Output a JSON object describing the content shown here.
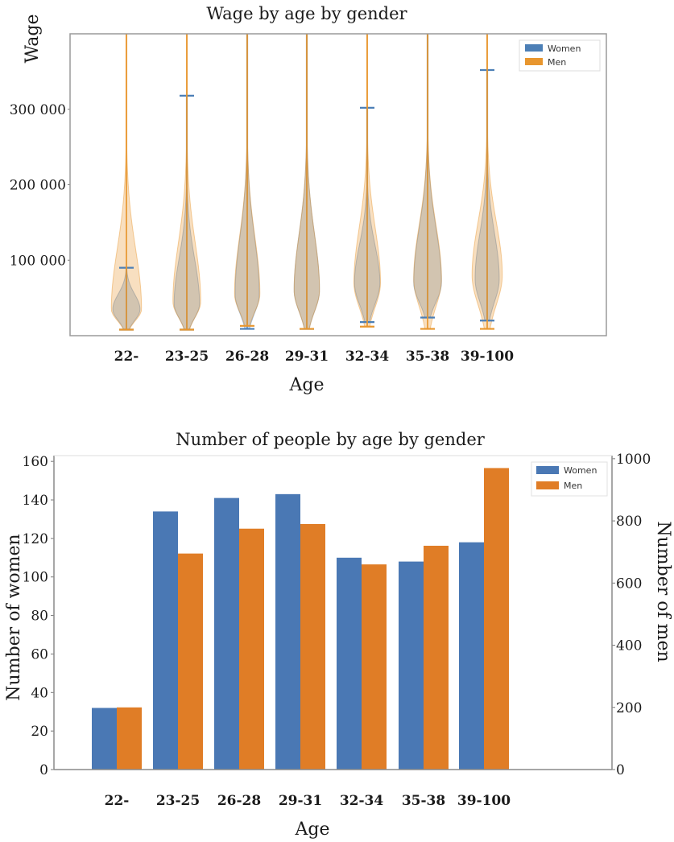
{
  "chart_data": [
    {
      "type": "violin",
      "title": "Wage by age by gender",
      "xlabel": "Age",
      "ylabel": "Wage",
      "categories": [
        "22-",
        "23-25",
        "26-28",
        "29-31",
        "32-34",
        "35-38",
        "39-100"
      ],
      "yticks": [
        {
          "value": 100000,
          "label": "100 000"
        },
        {
          "value": 200000,
          "label": "200 000"
        },
        {
          "value": 300000,
          "label": "300 000"
        }
      ],
      "ylim": [
        0,
        400000
      ],
      "legend": {
        "position": "top-right",
        "entries": [
          "Women",
          "Men"
        ]
      },
      "colors": {
        "Women": "#4c7fb6",
        "Men": "#e8962e"
      },
      "series": [
        {
          "name": "Women",
          "min": [
            8000,
            8000,
            9000,
            9000,
            18000,
            24000,
            20000
          ],
          "max": [
            90000,
            318000,
            400000,
            400000,
            302000,
            400000,
            352000
          ],
          "peak": [
            35000,
            42000,
            55000,
            60000,
            70000,
            70000,
            75000
          ],
          "width": [
            0.45,
            0.42,
            0.4,
            0.42,
            0.42,
            0.46,
            0.4
          ]
        },
        {
          "name": "Men",
          "min": [
            8000,
            8000,
            13000,
            9000,
            12000,
            9000,
            9000
          ],
          "max": [
            400000,
            400000,
            400000,
            400000,
            400000,
            400000,
            400000
          ],
          "peak": [
            35000,
            45000,
            55000,
            60000,
            70000,
            75000,
            80000
          ],
          "width": [
            0.5,
            0.46,
            0.42,
            0.42,
            0.44,
            0.46,
            0.5
          ]
        }
      ]
    },
    {
      "type": "bar",
      "title": "Number of people by age by gender",
      "xlabel": "Age",
      "ylabel_left": "Number of women",
      "ylabel_right": "Number of men",
      "categories": [
        "22-",
        "23-25",
        "26-28",
        "29-31",
        "32-34",
        "35-38",
        "39-100"
      ],
      "ylim_left": [
        0,
        163
      ],
      "ylim_right": [
        0,
        1010
      ],
      "yticks_left": [
        0,
        20,
        40,
        60,
        80,
        100,
        120,
        140,
        160
      ],
      "yticks_right": [
        0,
        200,
        400,
        600,
        800,
        1000
      ],
      "legend": {
        "position": "top-right",
        "entries": [
          "Women",
          "Men"
        ]
      },
      "colors": {
        "Women": "#4a78b4",
        "Men": "#e07d26"
      },
      "series": [
        {
          "name": "Women",
          "axis": "left",
          "values": [
            32,
            134,
            141,
            143,
            110,
            108,
            118
          ]
        },
        {
          "name": "Men",
          "axis": "right",
          "values": [
            200,
            695,
            775,
            790,
            660,
            720,
            970
          ]
        }
      ]
    }
  ]
}
